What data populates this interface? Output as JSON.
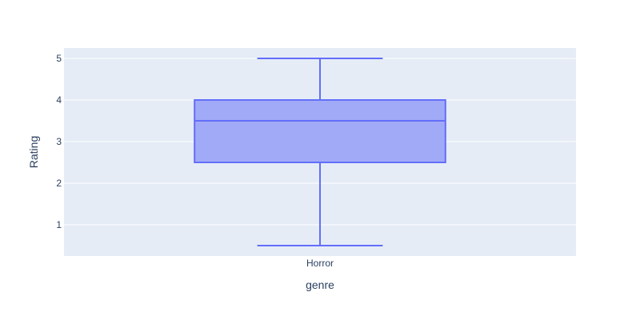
{
  "chart_data": {
    "type": "box",
    "xlabel": "genre",
    "ylabel": "Rating",
    "categories": [
      "Horror"
    ],
    "series": [
      {
        "category": "Horror",
        "min": 0.5,
        "q1": 2.5,
        "median": 3.5,
        "q3": 4,
        "max": 5
      }
    ],
    "y_ticks": [
      1,
      2,
      3,
      4,
      5
    ],
    "ylim": [
      0.25,
      5.25
    ],
    "grid": true,
    "colors": {
      "plot_bg": "#e5ecf6",
      "gridline": "#ffffff",
      "box_fill": "#a1aaf6",
      "box_line": "#636efa",
      "text": "#2a3f5f"
    }
  }
}
